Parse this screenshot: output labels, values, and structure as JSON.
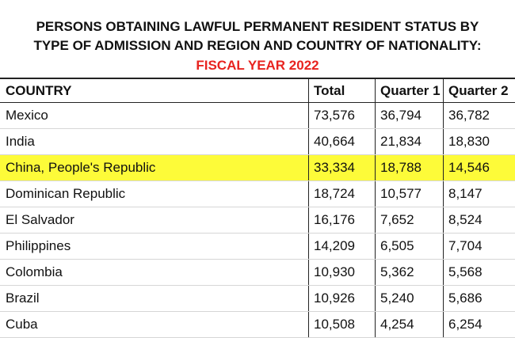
{
  "title": {
    "line1": "PERSONS OBTAINING LAWFUL PERMANENT RESIDENT STATUS BY",
    "line2": "TYPE OF ADMISSION AND REGION AND COUNTRY OF NATIONALITY:",
    "line3": "FISCAL YEAR 2022"
  },
  "table": {
    "headers": [
      "COUNTRY",
      "Total",
      "Quarter 1",
      "Quarter 2"
    ],
    "rows": [
      {
        "country": "Mexico",
        "total": "73,576",
        "q1": "36,794",
        "q2": "36,782"
      },
      {
        "country": "India",
        "total": "40,664",
        "q1": "21,834",
        "q2": "18,830"
      },
      {
        "country": "China, People's Republic",
        "total": "33,334",
        "q1": "18,788",
        "q2": "14,546"
      },
      {
        "country": "Dominican Republic",
        "total": "18,724",
        "q1": "10,577",
        "q2": "8,147"
      },
      {
        "country": "El Salvador",
        "total": "16,176",
        "q1": "7,652",
        "q2": "8,524"
      },
      {
        "country": "Philippines",
        "total": "14,209",
        "q1": "6,505",
        "q2": "7,704"
      },
      {
        "country": "Colombia",
        "total": "10,930",
        "q1": "5,362",
        "q2": "5,568"
      },
      {
        "country": "Brazil",
        "total": "10,926",
        "q1": "5,240",
        "q2": "5,686"
      },
      {
        "country": "Cuba",
        "total": "10,508",
        "q1": "4,254",
        "q2": "6,254"
      }
    ],
    "highlighted_row": "China, People's Republic",
    "highlight_color": "#fdfb39",
    "title_accent_color": "#e8231f"
  }
}
